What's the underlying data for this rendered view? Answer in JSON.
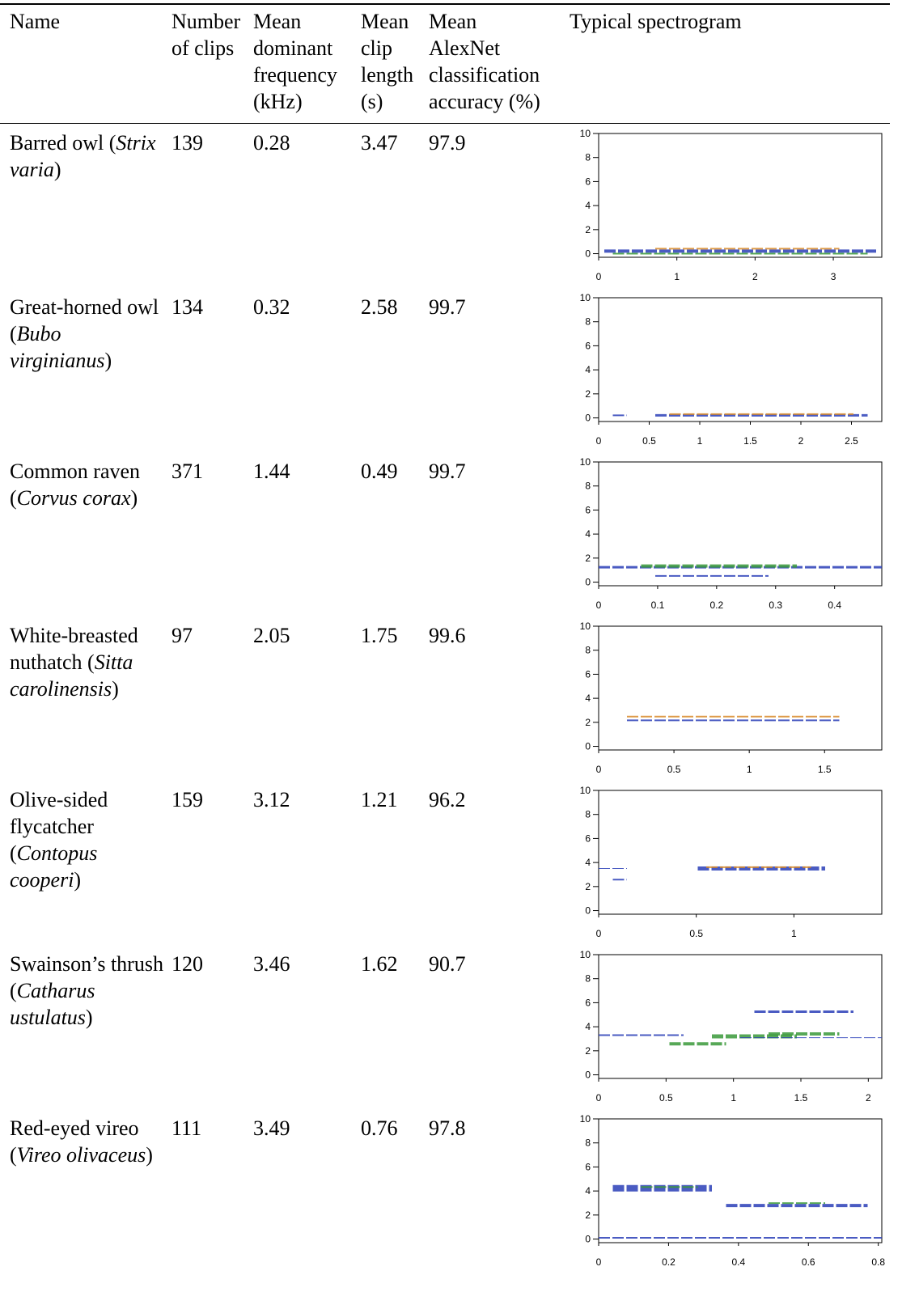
{
  "table": {
    "header": [
      [
        "Name"
      ],
      [
        "Number",
        "of clips"
      ],
      [
        "Mean",
        "dominant",
        "frequency",
        "(kHz)"
      ],
      [
        "Mean",
        "clip",
        "length",
        "(s)"
      ],
      [
        "Mean",
        "AlexNet",
        "classification",
        "accuracy (%)"
      ],
      [
        "Typical spectrogram"
      ]
    ],
    "rows": [
      {
        "name": {
          "prefix": "Barred owl (",
          "italic": "Strix varia",
          "suffix": ")"
        },
        "clips": "139",
        "freq": "0.28",
        "length": "3.47",
        "accuracy": "97.9",
        "spectrogram": {
          "ylim": [
            -0.3,
            10
          ],
          "yticks": [
            0,
            2,
            4,
            6,
            8,
            10
          ],
          "xlim": [
            0,
            3.62
          ],
          "xticks": [
            0,
            1,
            2,
            3
          ]
        }
      },
      {
        "name": {
          "prefix": "Great-horned owl (",
          "italic": "Bubo virginianus",
          "suffix": ")"
        },
        "clips": "134",
        "freq": "0.32",
        "length": "2.58",
        "accuracy": "99.7",
        "spectrogram": {
          "ylim": [
            -0.3,
            10
          ],
          "yticks": [
            0,
            2,
            4,
            6,
            8,
            10
          ],
          "xlim": [
            0,
            2.8
          ],
          "xticks": [
            0,
            0.5,
            1,
            1.5,
            2,
            2.5
          ]
        }
      },
      {
        "name": {
          "prefix": "Common raven (",
          "italic": "Corvus corax",
          "suffix": ")"
        },
        "clips": "371",
        "freq": "1.44",
        "length": "0.49",
        "accuracy": "99.7",
        "spectrogram": {
          "ylim": [
            -0.3,
            10
          ],
          "yticks": [
            0,
            2,
            4,
            6,
            8,
            10
          ],
          "xlim": [
            0,
            0.48
          ],
          "xticks": [
            0,
            0.1,
            0.2,
            0.3,
            0.4
          ]
        }
      },
      {
        "name": {
          "prefix": "White-breasted nuthatch (",
          "italic": "Sitta carolinensis",
          "suffix": ")"
        },
        "clips": "97",
        "freq": "2.05",
        "length": "1.75",
        "accuracy": "99.6",
        "spectrogram": {
          "ylim": [
            -0.3,
            10
          ],
          "yticks": [
            0,
            2,
            4,
            6,
            8,
            10
          ],
          "xlim": [
            0,
            1.88
          ],
          "xticks": [
            0,
            0.5,
            1,
            1.5
          ]
        }
      },
      {
        "name": {
          "prefix": "Olive-sided flycatcher (",
          "italic": "Contopus cooperi",
          "suffix": ")"
        },
        "clips": "159",
        "freq": "3.12",
        "length": "1.21",
        "accuracy": "96.2",
        "spectrogram": {
          "ylim": [
            -0.3,
            10
          ],
          "yticks": [
            0,
            2,
            4,
            6,
            8,
            10
          ],
          "xlim": [
            0,
            1.45
          ],
          "xticks": [
            0,
            0.5,
            1
          ]
        }
      },
      {
        "name": {
          "prefix": "Swainson’s thrush (",
          "italic": "Catharus ustulatus",
          "suffix": ")"
        },
        "clips": "120",
        "freq": "3.46",
        "length": "1.62",
        "accuracy": "90.7",
        "spectrogram": {
          "ylim": [
            -0.3,
            10
          ],
          "yticks": [
            0,
            2,
            4,
            6,
            8,
            10
          ],
          "xlim": [
            0,
            2.1
          ],
          "xticks": [
            0,
            0.5,
            1,
            1.5,
            2
          ]
        }
      },
      {
        "name": {
          "prefix": "Red-eyed vireo (",
          "italic": "Vireo olivaceus",
          "suffix": ")"
        },
        "clips": "111",
        "freq": "3.49",
        "length": "0.76",
        "accuracy": "97.8",
        "spectrogram": {
          "ylim": [
            -0.3,
            10
          ],
          "yticks": [
            0,
            2,
            4,
            6,
            8,
            10
          ],
          "xlim": [
            0,
            0.81
          ],
          "xticks": [
            0,
            0.2,
            0.4,
            0.6,
            0.8
          ]
        }
      }
    ]
  }
}
